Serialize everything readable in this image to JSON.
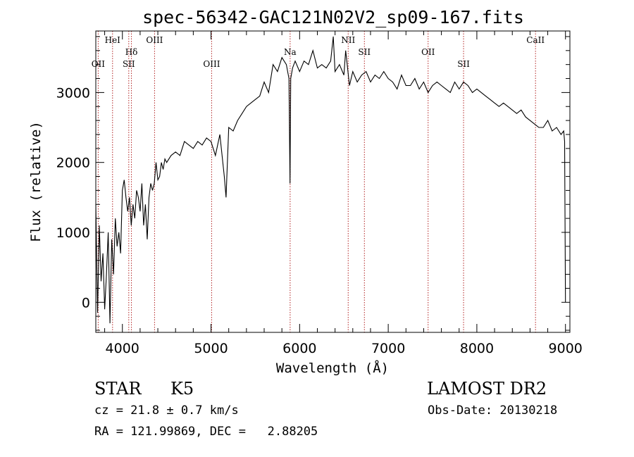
{
  "chart_data": {
    "type": "line",
    "title": "spec-56342-GAC121N02V2_sp09-167.fits",
    "xlabel": "Wavelength (Å)",
    "ylabel": "Flux (relative)",
    "xlim": [
      3700,
      9050
    ],
    "ylim": [
      -430,
      3880
    ],
    "x_ticks": [
      4000,
      5000,
      6000,
      7000,
      8000,
      9000
    ],
    "y_ticks": [
      0,
      1000,
      2000,
      3000
    ],
    "grid": false,
    "series": [
      {
        "color": "#000000",
        "x": [
          3700,
          3720,
          3740,
          3760,
          3780,
          3800,
          3820,
          3840,
          3860,
          3880,
          3900,
          3920,
          3940,
          3960,
          3980,
          4000,
          4020,
          4040,
          4060,
          4080,
          4100,
          4120,
          4140,
          4160,
          4180,
          4200,
          4220,
          4240,
          4260,
          4280,
          4300,
          4320,
          4340,
          4360,
          4380,
          4400,
          4420,
          4440,
          4460,
          4480,
          4500,
          4550,
          4600,
          4650,
          4700,
          4750,
          4800,
          4850,
          4900,
          4950,
          5000,
          5050,
          5100,
          5150,
          5170,
          5200,
          5250,
          5300,
          5350,
          5400,
          5450,
          5500,
          5550,
          5600,
          5650,
          5700,
          5750,
          5800,
          5850,
          5880,
          5892,
          5900,
          5920,
          5950,
          6000,
          6050,
          6100,
          6150,
          6200,
          6250,
          6300,
          6350,
          6380,
          6400,
          6450,
          6500,
          6520,
          6563,
          6600,
          6650,
          6700,
          6750,
          6800,
          6850,
          6900,
          6950,
          7000,
          7050,
          7100,
          7150,
          7200,
          7250,
          7300,
          7350,
          7400,
          7450,
          7500,
          7550,
          7600,
          7650,
          7700,
          7750,
          7800,
          7850,
          7900,
          7950,
          8000,
          8050,
          8100,
          8150,
          8200,
          8250,
          8300,
          8350,
          8400,
          8450,
          8500,
          8550,
          8600,
          8650,
          8700,
          8750,
          8800,
          8850,
          8900,
          8950,
          8980,
          8990,
          9000
        ],
        "values": [
          1400,
          -150,
          1100,
          300,
          700,
          -100,
          400,
          1000,
          -300,
          900,
          400,
          1200,
          800,
          1000,
          700,
          1600,
          1750,
          1500,
          1300,
          1500,
          1100,
          1400,
          1200,
          1600,
          1500,
          1300,
          1700,
          1100,
          1400,
          900,
          1500,
          1700,
          1600,
          1700,
          2000,
          1750,
          1800,
          2000,
          1900,
          2050,
          2000,
          2100,
          2150,
          2100,
          2300,
          2250,
          2200,
          2300,
          2250,
          2350,
          2300,
          2100,
          2400,
          1800,
          1500,
          2500,
          2450,
          2600,
          2700,
          2800,
          2850,
          2900,
          2950,
          3150,
          3000,
          3400,
          3300,
          3500,
          3400,
          3200,
          1700,
          3200,
          3350,
          3450,
          3300,
          3450,
          3400,
          3600,
          3350,
          3400,
          3350,
          3450,
          3800,
          3300,
          3400,
          3250,
          3600,
          3100,
          3300,
          3150,
          3250,
          3300,
          3150,
          3250,
          3200,
          3300,
          3200,
          3150,
          3050,
          3250,
          3100,
          3100,
          3200,
          3050,
          3150,
          3000,
          3100,
          3150,
          3100,
          3050,
          3000,
          3150,
          3050,
          3150,
          3100,
          3000,
          3050,
          3000,
          2950,
          2900,
          2850,
          2800,
          2850,
          2800,
          2750,
          2700,
          2750,
          2650,
          2600,
          2550,
          2500,
          2500,
          2600,
          2450,
          2500,
          2400,
          2450,
          2300,
          0
        ]
      }
    ],
    "lines": [
      {
        "label": "OII",
        "x": 3727,
        "row": 3
      },
      {
        "label": "HeI",
        "x": 3889,
        "row": 1
      },
      {
        "label": "Hδ",
        "x": 4102,
        "row": 2
      },
      {
        "label": "SII",
        "x": 4072,
        "row": 3
      },
      {
        "label": "OIII",
        "x": 4363,
        "row": 1
      },
      {
        "label": "OIII",
        "x": 5007,
        "row": 3
      },
      {
        "label": "Na",
        "x": 5893,
        "row": 2
      },
      {
        "label": "NII",
        "x": 6548,
        "row": 1
      },
      {
        "label": "SII",
        "x": 6731,
        "row": 2
      },
      {
        "label": "OII",
        "x": 7450,
        "row": 2
      },
      {
        "label": "SII",
        "x": 7850,
        "row": 3
      },
      {
        "label": "CaII",
        "x": 8662,
        "row": 1
      }
    ],
    "line_color": "#b22222"
  },
  "info": {
    "class": "STAR",
    "subclass": "K5",
    "survey": "LAMOST DR2",
    "cz": "cz = 21.8 ± 0.7 km/s",
    "obs_date": "Obs-Date: 20130218",
    "coords": "RA = 121.99869, DEC =   2.88205"
  }
}
